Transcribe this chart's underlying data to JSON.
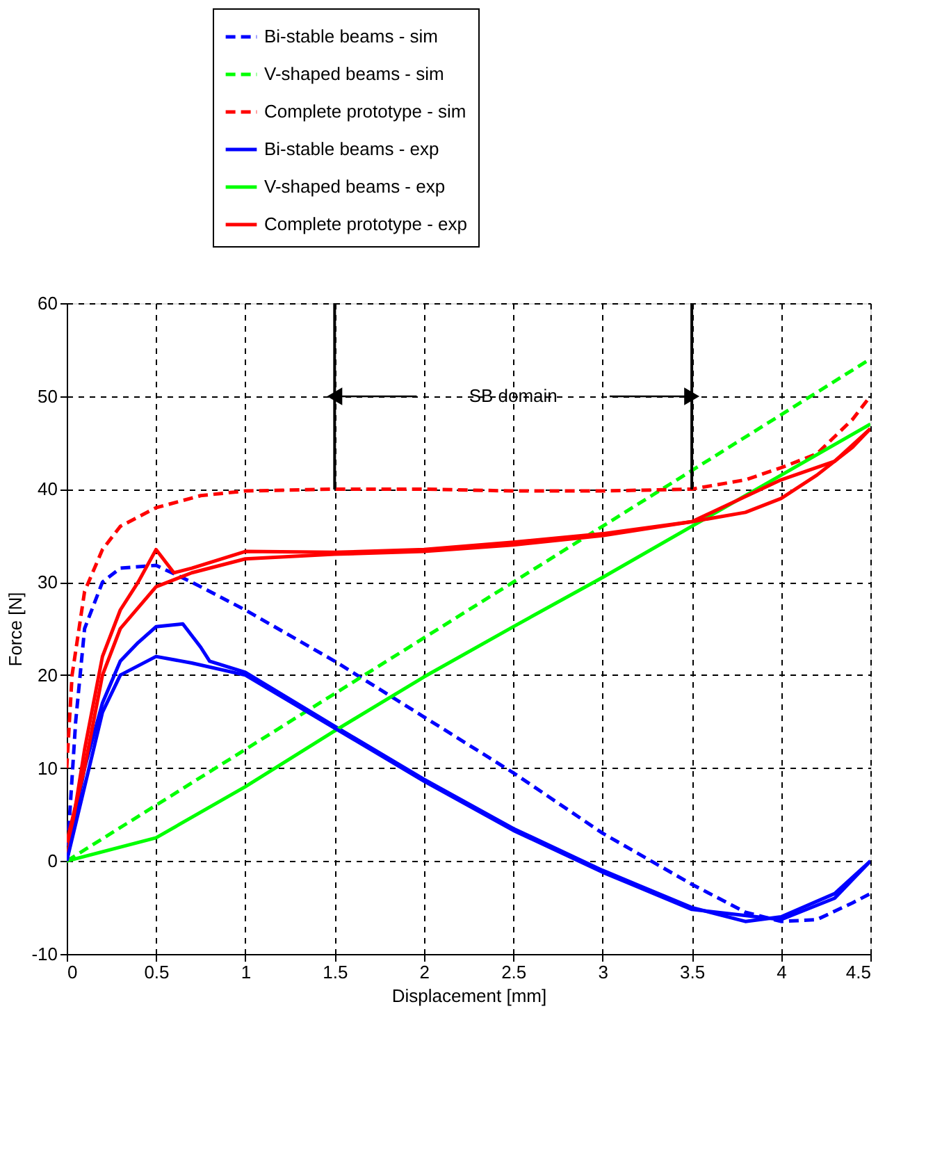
{
  "chart_data": {
    "type": "line",
    "xlabel": "Displacement [mm]",
    "ylabel": "Force [N]",
    "xlim": [
      0,
      4.5
    ],
    "ylim": [
      -10,
      60
    ],
    "xticks": [
      0,
      0.5,
      1,
      1.5,
      2,
      2.5,
      3,
      3.5,
      4,
      4.5
    ],
    "yticks": [
      -10,
      0,
      10,
      20,
      30,
      40,
      50,
      60
    ],
    "grid": true,
    "legend": "top",
    "marker": "none",
    "annotations": [
      "SB domain"
    ],
    "ref_lines": [
      {
        "axis": "x",
        "value": 1.5,
        "label": null,
        "color": "#000000"
      },
      {
        "axis": "x",
        "value": 3.5,
        "label": null,
        "color": "#000000"
      }
    ],
    "series": [
      {
        "name": "Bi-stable beams - sim",
        "color": "#0000ff",
        "line_style": "dashed",
        "x": [
          0,
          0.05,
          0.1,
          0.2,
          0.3,
          0.5,
          0.7,
          1,
          1.5,
          2,
          2.5,
          3,
          3.5,
          3.8,
          4,
          4.2,
          4.4,
          4.5
        ],
        "values": [
          0,
          15,
          25,
          30,
          31.5,
          31.8,
          30,
          27,
          21.5,
          15.5,
          9.5,
          3,
          -2.5,
          -5.5,
          -6.5,
          -6.3,
          -4.5,
          -3.5
        ]
      },
      {
        "name": "V-shaped beams - sim",
        "color": "#00ff00",
        "line_style": "dashed",
        "x": [
          0,
          4.5
        ],
        "values": [
          0,
          54
        ]
      },
      {
        "name": "Complete prototype - sim",
        "color": "#ff0000",
        "line_style": "dashed",
        "x": [
          0,
          0.03,
          0.1,
          0.2,
          0.3,
          0.5,
          0.75,
          1,
          1.5,
          2,
          2.5,
          3,
          3.5,
          3.8,
          4,
          4.2,
          4.4,
          4.5
        ],
        "values": [
          10,
          20,
          29,
          33.5,
          36,
          38,
          39.3,
          39.8,
          40,
          40,
          39.8,
          39.8,
          40,
          41,
          42.3,
          43.8,
          47.5,
          50
        ]
      },
      {
        "name": "Bi-stable beams - exp",
        "color": "#0000ff",
        "line_style": "solid",
        "x": [
          0,
          0.1,
          0.2,
          0.3,
          0.4,
          0.5,
          0.65,
          0.75,
          0.8,
          1,
          1.5,
          2,
          2.5,
          3,
          3.5,
          3.8,
          4,
          4.3,
          4.5
        ],
        "values": [
          0,
          10,
          17,
          21.5,
          23.5,
          25.2,
          25.5,
          23,
          21.5,
          20.3,
          14.5,
          8.8,
          3.5,
          -1,
          -5,
          -6.5,
          -6,
          -3.5,
          0
        ]
      },
      {
        "name": "V-shaped beams - exp",
        "color": "#00ff00",
        "line_style": "solid",
        "x": [
          0,
          0.5,
          1,
          1.5,
          2,
          2.5,
          3,
          3.5,
          4,
          4.5
        ],
        "values": [
          0,
          2.5,
          8,
          14,
          19.8,
          25.2,
          30.5,
          36,
          41.5,
          47
        ]
      },
      {
        "name": "Complete prototype - exp",
        "color": "#ff0000",
        "line_style": "solid",
        "x": [
          0,
          0.1,
          0.2,
          0.3,
          0.4,
          0.5,
          0.6,
          0.7,
          0.9,
          1,
          1.5,
          2,
          2.5,
          3,
          3.5,
          3.8,
          4,
          4.2,
          4.4,
          4.5
        ],
        "values": [
          0,
          12,
          22,
          27,
          30,
          33.5,
          31,
          31.5,
          32.7,
          33.3,
          33.2,
          33.5,
          34.3,
          35.2,
          36.5,
          37.5,
          39,
          41.5,
          44.5,
          46.5
        ]
      },
      {
        "color": "#0000ff",
        "line_style": "solid",
        "x": [
          0,
          0.1,
          0.2,
          0.3,
          0.5,
          0.7,
          1,
          1.5,
          2,
          2.5,
          3,
          3.5,
          4,
          4.3,
          4.5
        ],
        "values": [
          0,
          8,
          16,
          20,
          22,
          21.3,
          20,
          14.3,
          8.6,
          3.3,
          -1.2,
          -5.2,
          -6.3,
          -4,
          0
        ]
      },
      {
        "color": "#ff0000",
        "line_style": "solid",
        "x": [
          0,
          0.1,
          0.2,
          0.3,
          0.5,
          0.7,
          1,
          1.5,
          2,
          2.5,
          3,
          3.5,
          4,
          4.3,
          4.5
        ],
        "values": [
          2,
          10,
          20,
          25,
          29.5,
          31,
          32.5,
          33,
          33.3,
          34,
          35,
          36.5,
          41,
          43,
          46.5
        ]
      }
    ]
  }
}
